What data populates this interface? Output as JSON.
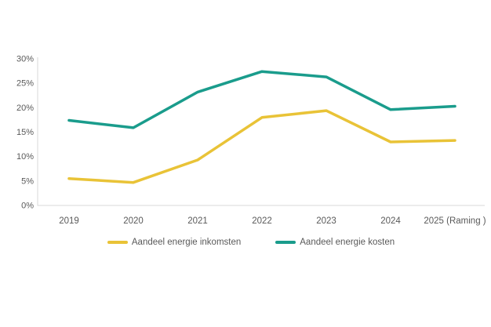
{
  "chart_data": {
    "type": "line",
    "categories": [
      "2019",
      "2020",
      "2021",
      "2022",
      "2023",
      "2024",
      "2025 (Raming )"
    ],
    "series": [
      {
        "name": "Aandeel energie inkomsten",
        "color": "#E9C337",
        "values": [
          5.5,
          4.7,
          9.3,
          18.0,
          19.4,
          13.0,
          13.3
        ]
      },
      {
        "name": "Aandeel energie kosten",
        "color": "#1A9C8C",
        "values": [
          17.4,
          15.9,
          23.2,
          27.4,
          26.3,
          19.6,
          20.3
        ]
      }
    ],
    "title": "",
    "xlabel": "",
    "ylabel": "",
    "ylim": [
      0,
      30
    ],
    "ytick_step": 5,
    "ytick_labels": [
      "0%",
      "5%",
      "10%",
      "15%",
      "20%",
      "25%",
      "30%"
    ],
    "grid": false,
    "legend_position": "bottom",
    "axis_color": "#D9D9D9",
    "text_color": "#595959"
  }
}
